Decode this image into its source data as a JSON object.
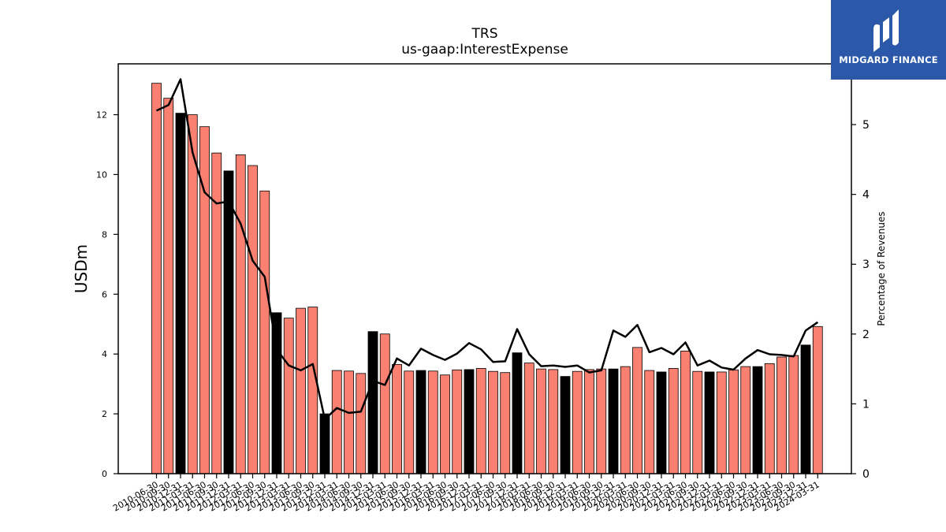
{
  "chart_data": {
    "type": "bar",
    "title": "TRS",
    "subtitle": "us-gaap:InterestExpense",
    "ylabel": "USDm",
    "y2label": "Percentage of Revenues",
    "ylim": [
      0,
      13.7
    ],
    "y2lim": [
      0,
      5.87
    ],
    "yticks": [
      0,
      2,
      4,
      6,
      8,
      10,
      12
    ],
    "y2ticks": [
      0,
      1,
      2,
      3,
      4,
      5
    ],
    "colors": {
      "bar": "#fa8072",
      "bar_fy": "#000000",
      "line": "#000000"
    },
    "categories": [
      "2010-06-30",
      "2010-09-30",
      "2010-12-31",
      "2011-03-31",
      "2011-06-30",
      "2011-09-30",
      "2011-12-31",
      "2012-03-31",
      "2012-06-30",
      "2012-09-30",
      "2012-12-31",
      "2013-03-31",
      "2013-06-30",
      "2013-09-30",
      "2013-12-31",
      "2014-03-31",
      "2014-06-30",
      "2014-09-30",
      "2014-12-31",
      "2015-03-31",
      "2015-06-30",
      "2015-09-30",
      "2015-12-31",
      "2016-03-31",
      "2016-06-30",
      "2016-09-30",
      "2016-12-31",
      "2017-03-31",
      "2017-06-30",
      "2017-09-30",
      "2017-12-31",
      "2018-03-31",
      "2018-06-30",
      "2018-09-30",
      "2018-12-31",
      "2019-03-31",
      "2019-06-30",
      "2019-09-30",
      "2019-12-31",
      "2020-03-31",
      "2020-06-30",
      "2020-09-30",
      "2020-12-31",
      "2021-03-31",
      "2021-06-30",
      "2021-09-30",
      "2021-12-31",
      "2022-03-31",
      "2022-06-30",
      "2022-09-30",
      "2022-12-31",
      "2023-03-31",
      "2023-06-30",
      "2023-09-30",
      "2023-12-31",
      "2024-03-31"
    ],
    "series": [
      {
        "values": [
          13.05,
          12.55,
          12.05,
          12.0,
          11.6,
          10.72,
          10.12,
          10.66,
          10.3,
          9.45,
          5.38,
          5.2,
          5.53,
          5.57,
          2.0,
          3.45,
          3.43,
          3.35,
          4.75,
          4.67,
          3.65,
          3.43,
          3.45,
          3.43,
          3.3,
          3.47,
          3.48,
          3.52,
          3.42,
          3.38,
          4.04,
          3.7,
          3.5,
          3.48,
          3.25,
          3.42,
          3.48,
          3.5,
          3.5,
          3.58,
          4.22,
          3.45,
          3.4,
          3.52,
          4.1,
          3.42,
          3.4,
          3.4,
          3.47,
          3.58,
          3.58,
          3.68,
          3.9,
          3.95,
          4.3,
          4.92
        ],
        "highlight": [
          false,
          false,
          true,
          false,
          false,
          false,
          true,
          false,
          false,
          false,
          true,
          false,
          false,
          false,
          true,
          false,
          false,
          false,
          true,
          false,
          false,
          false,
          true,
          false,
          false,
          false,
          true,
          false,
          false,
          false,
          true,
          false,
          false,
          false,
          true,
          false,
          false,
          false,
          true,
          false,
          false,
          false,
          true,
          false,
          false,
          false,
          true,
          false,
          false,
          false,
          true,
          false,
          false,
          false,
          true,
          false
        ]
      },
      {
        "values": [
          5.2,
          5.28,
          5.65,
          4.6,
          4.03,
          3.87,
          3.9,
          3.58,
          3.05,
          2.82,
          1.78,
          1.55,
          1.48,
          1.57,
          0.78,
          0.94,
          0.87,
          0.89,
          1.33,
          1.27,
          1.65,
          1.55,
          1.79,
          1.7,
          1.63,
          1.72,
          1.87,
          1.78,
          1.6,
          1.61,
          2.07,
          1.71,
          1.54,
          1.55,
          1.53,
          1.55,
          1.45,
          1.48,
          2.05,
          1.96,
          2.13,
          1.74,
          1.8,
          1.71,
          1.88,
          1.55,
          1.62,
          1.52,
          1.49,
          1.65,
          1.77,
          1.71,
          1.7,
          1.68,
          2.05,
          2.17
        ]
      }
    ]
  }
}
